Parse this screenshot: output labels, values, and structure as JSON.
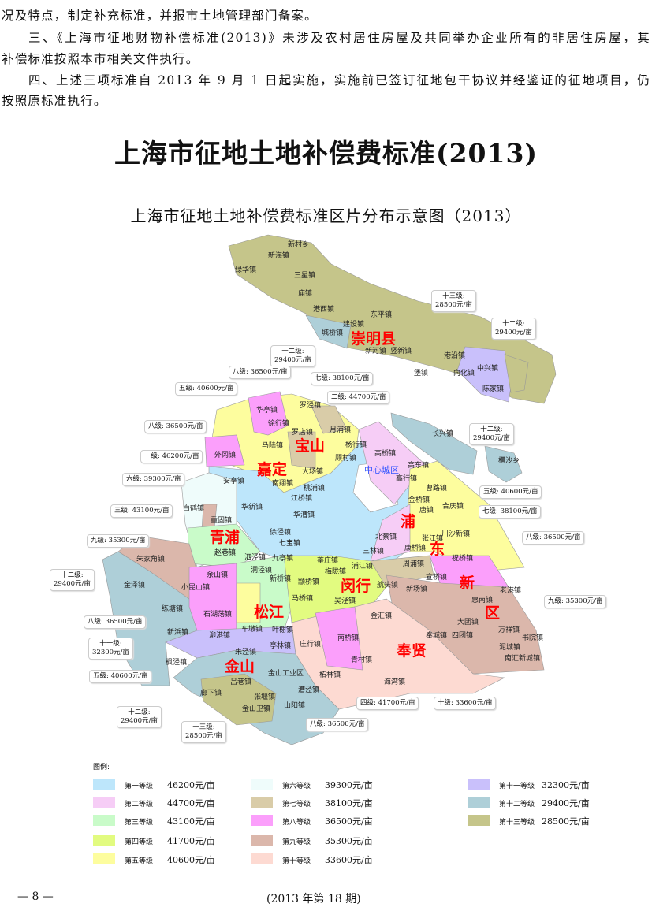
{
  "body_text": [
    "况及特点，制定补充标准，并报市土地管理部门备案。",
    "三、《上海市征地财物补偿标准(2013)》未涉及农村居住房屋及共同举办企业所有的非居住房屋，其",
    "补偿标准按照本市相关文件执行。",
    "四、上述三项标准自 2013 年 9 月 1 日起实施，实施前已签订征地包干协议并经鉴证的征地项目，仍",
    "按照原标准执行。"
  ],
  "title": "上海市征地土地补偿费标准(2013)",
  "map": {
    "title": "上海市征地土地补偿费标准区片分布示意图（2013）",
    "districts": [
      "崇明县",
      "宝山",
      "嘉定",
      "青浦",
      "松江",
      "闵行",
      "金山",
      "奉贤",
      "浦",
      "东",
      "新",
      "区"
    ],
    "center_label": "中心城区",
    "towns": [
      "新村乡",
      "新海镇",
      "绿华镇",
      "三星镇",
      "庙镇",
      "港西镇",
      "城桥镇",
      "建设镇",
      "东平镇",
      "新河镇",
      "竖新镇",
      "港沿镇",
      "堡镇",
      "向化镇",
      "中兴镇",
      "陈家镇",
      "长兴镇",
      "横沙乡",
      "罗泾镇",
      "华亭镇",
      "徐行镇",
      "月浦镇",
      "罗店镇",
      "杨行镇",
      "顾村镇",
      "马陆镇",
      "外冈镇",
      "安亭镇",
      "南翔镇",
      "大场镇",
      "江桥镇",
      "桃浦镇",
      "华新镇",
      "白鹤镇",
      "重固镇",
      "华漕镇",
      "徐泾镇",
      "赵巷镇",
      "七宝镇",
      "高桥镇",
      "高东镇",
      "高行镇",
      "曹路镇",
      "金桥镇",
      "合庆镇",
      "唐镇",
      "张江镇",
      "北蔡镇",
      "川沙新镇",
      "康桥镇",
      "周浦镇",
      "祝桥镇",
      "航头镇",
      "新场镇",
      "宣桥镇",
      "惠南镇",
      "老港镇",
      "大团镇",
      "万祥镇",
      "书院镇",
      "泥城镇",
      "南汇新城镇",
      "朱家角镇",
      "金泽镇",
      "练塘镇",
      "余山镇",
      "小昆山镇",
      "九亭镇",
      "泗泾镇",
      "洞泾镇",
      "新桥镇",
      "石湖荡镇",
      "车墩镇",
      "叶榭镇",
      "新浜镇",
      "泖港镇",
      "枫泾镇",
      "朱泾镇",
      "亭林镇",
      "吕巷镇",
      "廊下镇",
      "张堰镇",
      "金山卫镇",
      "山阳镇",
      "漕泾镇",
      "金山工业区",
      "庄行镇",
      "南桥镇",
      "柘林镇",
      "金汇镇",
      "奉城镇",
      "四团镇",
      "青村镇",
      "海湾镇",
      "马桥镇",
      "颛桥镇",
      "吴泾镇",
      "浦江镇",
      "梅陇镇",
      "莘庄镇",
      "三林镇"
    ],
    "callouts": [
      {
        "level": "十三级:",
        "price": "28500元/亩"
      },
      {
        "level": "十二级:",
        "price": "29400元/亩"
      },
      {
        "level": "十二级:",
        "price": "29400元/亩"
      },
      {
        "level": "八级:",
        "price": "36500元/亩"
      },
      {
        "level": "七级:",
        "price": "38100元/亩"
      },
      {
        "level": "二级:",
        "price": "44700元/亩"
      },
      {
        "level": "五级:",
        "price": "40600元/亩"
      },
      {
        "level": "八级:",
        "price": "36500元/亩"
      },
      {
        "level": "一级:",
        "price": "46200元/亩"
      },
      {
        "level": "六级:",
        "price": "39300元/亩"
      },
      {
        "level": "三级:",
        "price": "43100元/亩"
      },
      {
        "level": "九级:",
        "price": "35300元/亩"
      },
      {
        "level": "十二级:",
        "price": "29400元/亩"
      },
      {
        "level": "五级:",
        "price": "40600元/亩"
      },
      {
        "level": "七级:",
        "price": "38100元/亩"
      },
      {
        "level": "八级:",
        "price": "36500元/亩"
      },
      {
        "level": "九级:",
        "price": "35300元/亩"
      },
      {
        "level": "十二级:",
        "price": "29400元/亩"
      },
      {
        "level": "八级:",
        "price": "36500元/亩"
      },
      {
        "level": "十一级:",
        "price": "32300元/亩"
      },
      {
        "level": "五级:",
        "price": "40600元/亩"
      },
      {
        "level": "十二级:",
        "price": "29400元/亩"
      },
      {
        "level": "十三级:",
        "price": "28500元/亩"
      },
      {
        "level": "八级:",
        "price": "36500元/亩"
      },
      {
        "level": "四级:",
        "price": "41700元/亩"
      },
      {
        "level": "十级:",
        "price": "33600元/亩"
      }
    ]
  },
  "legend": {
    "title": "图例:",
    "items": [
      {
        "label": "第一等级",
        "price": "46200元/亩",
        "color": "#bde6fb"
      },
      {
        "label": "第二等级",
        "price": "44700元/亩",
        "color": "#f6cdf6"
      },
      {
        "label": "第三等级",
        "price": "43100元/亩",
        "color": "#c9fbc9"
      },
      {
        "label": "第四等级",
        "price": "41700元/亩",
        "color": "#e2fb80"
      },
      {
        "label": "第五等级",
        "price": "40600元/亩",
        "color": "#fdfd9e"
      },
      {
        "label": "第六等级",
        "price": "39300元/亩",
        "color": "#effcfb"
      },
      {
        "label": "第七等级",
        "price": "38100元/亩",
        "color": "#d9cca8"
      },
      {
        "label": "第八等级",
        "price": "36500元/亩",
        "color": "#fb9ffb"
      },
      {
        "label": "第九等级",
        "price": "35300元/亩",
        "color": "#dbb7ab"
      },
      {
        "label": "第十等级",
        "price": "33600元/亩",
        "color": "#fddad2"
      },
      {
        "label": "第十一等级",
        "price": "32300元/亩",
        "color": "#c9c0fb"
      },
      {
        "label": "第十二等级",
        "price": "29400元/亩",
        "color": "#aecfd8"
      },
      {
        "label": "第十三等级",
        "price": "28500元/亩",
        "color": "#c5c58a"
      }
    ]
  },
  "footer": {
    "page": "— 8 —",
    "issue": "(2013 年第 18 期)"
  }
}
